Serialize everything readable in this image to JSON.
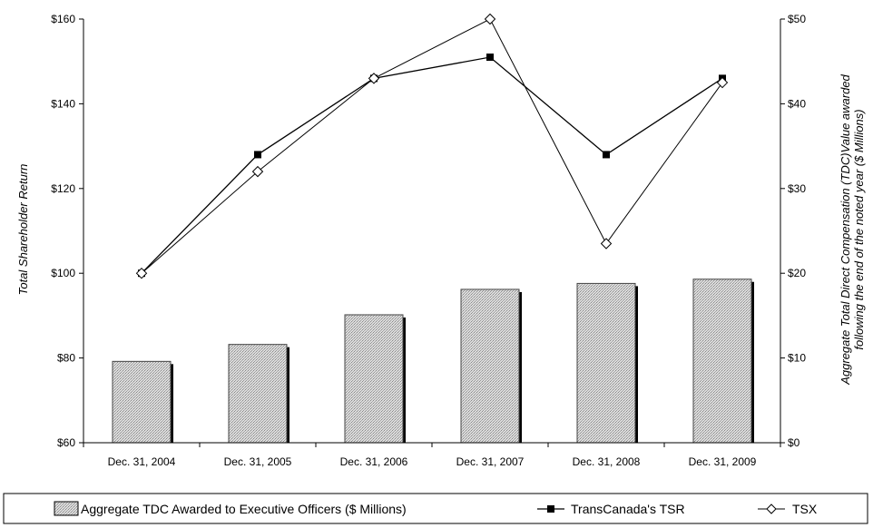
{
  "chart_data": {
    "type": "bar+line",
    "categories": [
      "Dec. 31, 2004",
      "Dec. 31, 2005",
      "Dec. 31, 2006",
      "Dec. 31, 2007",
      "Dec. 31, 2008",
      "Dec. 31, 2009"
    ],
    "left_axis": {
      "label": "Total Shareholder Return",
      "range": [
        60,
        160
      ],
      "ticks": [
        60,
        80,
        100,
        120,
        140,
        160
      ],
      "tick_labels": [
        "$60",
        "$80",
        "$100",
        "$120",
        "$140",
        "$160"
      ]
    },
    "right_axis": {
      "label_line1": "Aggregate Total Direct Compensation (TDC)Value awarded",
      "label_line2": "following the end of the noted year ($ Millions)",
      "range": [
        0,
        50
      ],
      "ticks": [
        0,
        10,
        20,
        30,
        40,
        50
      ],
      "tick_labels": [
        "$0",
        "$10",
        "$20",
        "$30",
        "$40",
        "$50"
      ]
    },
    "series": [
      {
        "name": "Aggregate TDC Awarded to Executive Officers ($ Millions)",
        "type": "bar",
        "axis": "right",
        "values": [
          9.6,
          11.6,
          15.1,
          18.1,
          18.8,
          19.3
        ]
      },
      {
        "name": "TransCanada's TSR",
        "type": "line",
        "axis": "left",
        "marker": "filled-square",
        "values": [
          100,
          128,
          146,
          151,
          128,
          146
        ]
      },
      {
        "name": "TSX",
        "type": "line",
        "axis": "left",
        "marker": "open-diamond",
        "values": [
          100,
          124,
          146,
          160,
          107,
          145
        ]
      }
    ],
    "legend_position": "bottom",
    "grid": false
  }
}
